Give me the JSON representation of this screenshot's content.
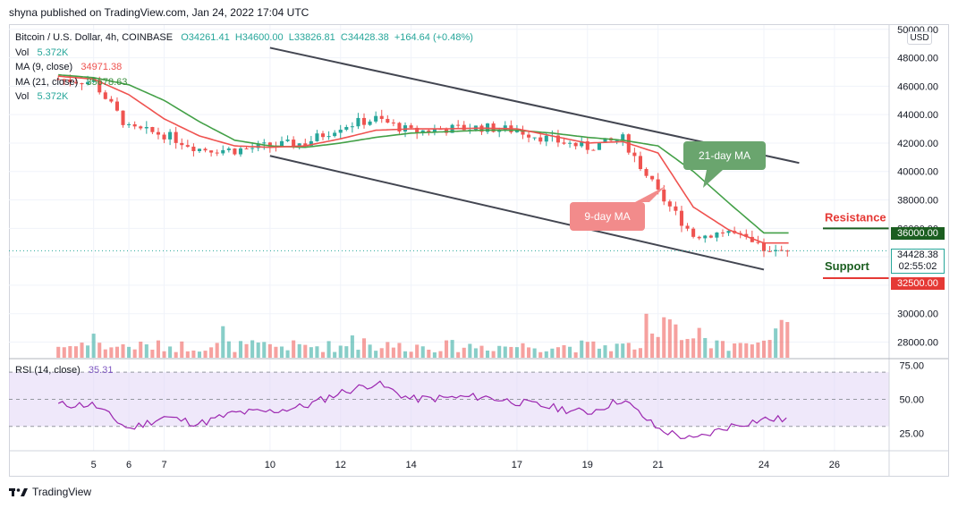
{
  "header": {
    "published": "shyna published on TradingView.com, Jan 24, 2022 17:04 UTC"
  },
  "legend": {
    "symbol": "Bitcoin / U.S. Dollar, 4h, COINBASE",
    "open": "O34261.41",
    "high": "H34600.00",
    "low": "L33826.81",
    "close": "C34428.38",
    "change": "+164.64 (+0.48%)",
    "vol_label": "Vol",
    "vol_value": "5.372K",
    "ma9_label": "MA (9, close)",
    "ma9_value": "34971.38",
    "ma21_label": "MA (21, close)",
    "ma21_value": "35678.63",
    "vol2_label": "Vol",
    "vol2_value": "5.372K"
  },
  "currency_button": "USD",
  "price_tags": {
    "resistance_level": "36000.00",
    "current_price": "34428.38",
    "countdown": "02:55:02",
    "support_level": "32500.00"
  },
  "annotations": {
    "ma21": "21-day MA",
    "ma9": "9-day MA",
    "resistance": "Resistance",
    "support": "Support"
  },
  "rsi_legend": {
    "label": "RSI (14, close)",
    "value": "35.31"
  },
  "footer": {
    "brand": "TradingView"
  },
  "colors": {
    "up": "#26a69a",
    "down": "#ef5350",
    "ma9": "#ef5350",
    "ma21": "#43a047",
    "rsi": "#9c27b0",
    "rsi_band": "#e1d6f5",
    "channel": "#434651",
    "resistance": "#e53935",
    "support": "#1b5e20",
    "grid": "#f0f3fa"
  },
  "chart_data": {
    "type": "candlestick",
    "timeframe": "4h",
    "x_tick_labels": [
      "5",
      "6",
      "7",
      "10",
      "12",
      "14",
      "17",
      "19",
      "21",
      "24",
      "26"
    ],
    "price_axis": {
      "ticks": [
        28000,
        30000,
        32000,
        34000,
        36000,
        38000,
        40000,
        42000,
        44000,
        46000,
        48000,
        50000
      ],
      "range": [
        26900,
        50300
      ]
    },
    "rsi_axis": {
      "ticks": [
        25,
        50,
        75
      ],
      "range": [
        12,
        80
      ],
      "band": [
        30,
        70
      ]
    },
    "key_points": [
      {
        "label": "Jan 4",
        "price": 46500,
        "ma9": 46700,
        "ma21": 46800,
        "rsi": 46
      },
      {
        "label": "Jan 5",
        "price": 46300,
        "ma9": 46500,
        "ma21": 46600,
        "rsi": 46
      },
      {
        "label": "Jan 6",
        "price": 43000,
        "ma9": 45400,
        "ma21": 46100,
        "rsi": 28
      },
      {
        "label": "Jan 7",
        "price": 42600,
        "ma9": 43700,
        "ma21": 45000,
        "rsi": 37
      },
      {
        "label": "Jan 8",
        "price": 41600,
        "ma9": 42500,
        "ma21": 43500,
        "rsi": 32
      },
      {
        "label": "Jan 9",
        "price": 41500,
        "ma9": 41800,
        "ma21": 42200,
        "rsi": 40
      },
      {
        "label": "Jan 10",
        "price": 41800,
        "ma9": 41700,
        "ma21": 41800,
        "rsi": 41
      },
      {
        "label": "Jan 11",
        "price": 42000,
        "ma9": 41800,
        "ma21": 41700,
        "rsi": 45
      },
      {
        "label": "Jan 12",
        "price": 43200,
        "ma9": 42300,
        "ma21": 42000,
        "rsi": 55
      },
      {
        "label": "Jan 13",
        "price": 43700,
        "ma9": 42900,
        "ma21": 42400,
        "rsi": 62
      },
      {
        "label": "Jan 14",
        "price": 42800,
        "ma9": 43000,
        "ma21": 42700,
        "rsi": 50
      },
      {
        "label": "Jan 15",
        "price": 43000,
        "ma9": 43000,
        "ma21": 42800,
        "rsi": 51
      },
      {
        "label": "Jan 16",
        "price": 43100,
        "ma9": 43050,
        "ma21": 42900,
        "rsi": 52
      },
      {
        "label": "Jan 17",
        "price": 42900,
        "ma9": 43000,
        "ma21": 42900,
        "rsi": 48
      },
      {
        "label": "Jan 18",
        "price": 42200,
        "ma9": 42500,
        "ma21": 42700,
        "rsi": 44
      },
      {
        "label": "Jan 19",
        "price": 41700,
        "ma9": 42000,
        "ma21": 42400,
        "rsi": 40
      },
      {
        "label": "Jan 20",
        "price": 42300,
        "ma9": 42100,
        "ma21": 42200,
        "rsi": 50
      },
      {
        "label": "Jan 21",
        "price": 38500,
        "ma9": 41300,
        "ma21": 41800,
        "rsi": 28
      },
      {
        "label": "Jan 22",
        "price": 35500,
        "ma9": 37500,
        "ma21": 40000,
        "rsi": 20
      },
      {
        "label": "Jan 23",
        "price": 35800,
        "ma9": 35900,
        "ma21": 37800,
        "rsi": 30
      },
      {
        "label": "Jan 24",
        "price": 34428.38,
        "ma9": 34971.38,
        "ma21": 35678.63,
        "rsi": 35.31
      }
    ],
    "channel_lines": [
      {
        "name": "upper",
        "from": {
          "date": "Jan 10",
          "price": 48700
        },
        "to": {
          "date": "Jan 25",
          "price": 40600
        }
      },
      {
        "name": "lower",
        "from": {
          "date": "Jan 10",
          "price": 41100
        },
        "to": {
          "date": "Jan 24",
          "price": 33100
        }
      }
    ],
    "levels": {
      "resistance": 36000,
      "support": 32500
    },
    "last_price": 34428.38
  }
}
